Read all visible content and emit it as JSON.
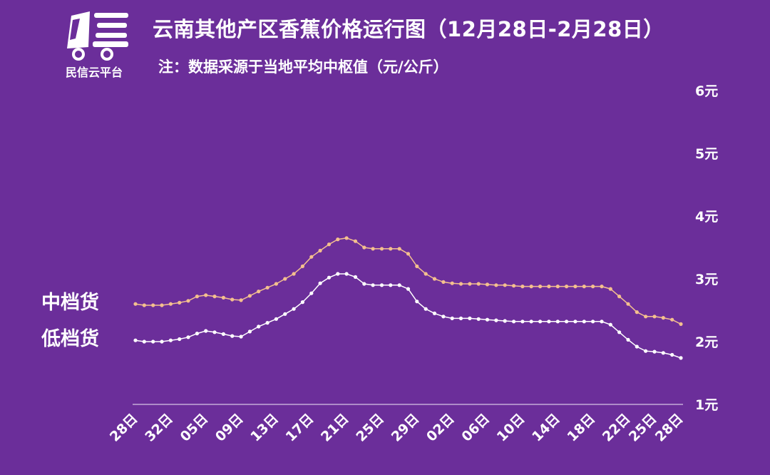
{
  "header": {
    "brand": "民信云平台",
    "title": "云南其他产区香蕉价格运行图（12月28日-2月28日）",
    "subtitle": "注：数据采源于当地平均中枢值（元/公斤）"
  },
  "colors": {
    "background": "#6b2e9a",
    "mid_series": "#f4c08e",
    "low_series": "#ffffff",
    "axis": "#ffffff"
  },
  "logo": {
    "icon": "truck-logo-icon"
  },
  "chart_data": {
    "type": "line",
    "title": "云南其他产区香蕉价格运行图（12月28日-2月28日）",
    "subtitle": "注：数据采源于当地平均中枢值（元/公斤）",
    "ylim": [
      1,
      6
    ],
    "y_ticks": [
      "1元",
      "2元",
      "3元",
      "4元",
      "5元",
      "6元"
    ],
    "y_tick_values": [
      1,
      2,
      3,
      4,
      5,
      6
    ],
    "y_axis_position": "right",
    "grid": false,
    "legend": "left, inline labels",
    "x_ticks": [
      "28日",
      "32日",
      "05日",
      "09日",
      "13日",
      "17日",
      "21日",
      "25日",
      "29日",
      "02日",
      "06日",
      "10日",
      "14日",
      "18日",
      "22日",
      "25日",
      "28日"
    ],
    "x_tick_indices": [
      0,
      4,
      8,
      12,
      16,
      20,
      24,
      28,
      32,
      36,
      40,
      44,
      48,
      52,
      56,
      59,
      62
    ],
    "series": [
      {
        "name": "中档货",
        "values": [
          2.6,
          2.58,
          2.58,
          2.58,
          2.6,
          2.62,
          2.65,
          2.72,
          2.74,
          2.72,
          2.7,
          2.67,
          2.66,
          2.73,
          2.8,
          2.86,
          2.92,
          3.0,
          3.08,
          3.2,
          3.35,
          3.45,
          3.55,
          3.63,
          3.65,
          3.6,
          3.5,
          3.48,
          3.48,
          3.48,
          3.48,
          3.4,
          3.2,
          3.08,
          3.0,
          2.95,
          2.93,
          2.92,
          2.92,
          2.92,
          2.91,
          2.9,
          2.9,
          2.89,
          2.88,
          2.88,
          2.88,
          2.88,
          2.88,
          2.88,
          2.88,
          2.88,
          2.88,
          2.88,
          2.84,
          2.72,
          2.6,
          2.47,
          2.4,
          2.4,
          2.38,
          2.35,
          2.28
        ]
      },
      {
        "name": "低档货",
        "values": [
          2.02,
          2.0,
          2.0,
          2.0,
          2.02,
          2.04,
          2.07,
          2.13,
          2.17,
          2.15,
          2.12,
          2.09,
          2.08,
          2.16,
          2.24,
          2.3,
          2.36,
          2.44,
          2.52,
          2.63,
          2.77,
          2.93,
          3.02,
          3.08,
          3.08,
          3.03,
          2.92,
          2.9,
          2.9,
          2.9,
          2.9,
          2.84,
          2.64,
          2.52,
          2.45,
          2.4,
          2.37,
          2.37,
          2.37,
          2.36,
          2.35,
          2.34,
          2.33,
          2.32,
          2.32,
          2.32,
          2.32,
          2.32,
          2.32,
          2.32,
          2.32,
          2.32,
          2.32,
          2.32,
          2.27,
          2.15,
          2.03,
          1.92,
          1.85,
          1.84,
          1.82,
          1.79,
          1.74
        ]
      }
    ]
  }
}
